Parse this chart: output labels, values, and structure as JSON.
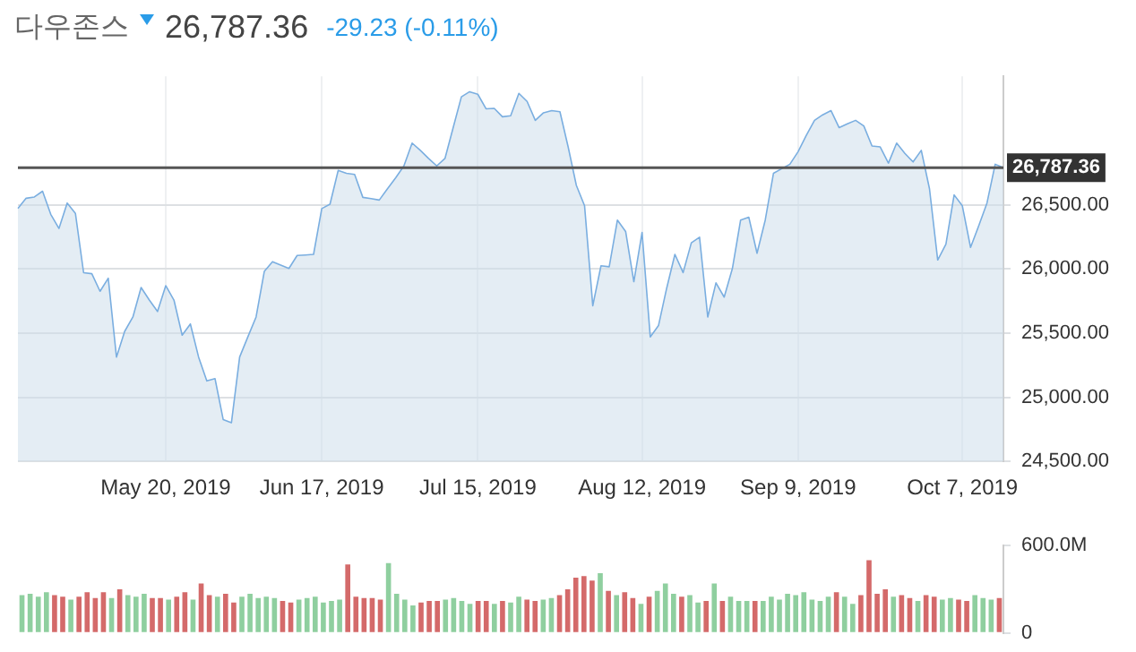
{
  "chart_data": [
    {
      "type": "area",
      "title": "다우존스",
      "subtitle": "26,787.36",
      "annotations": [
        "-29.23 (-0.11%)"
      ],
      "categories": [
        null,
        null,
        null,
        null,
        null,
        null,
        null,
        null,
        null,
        null,
        null,
        null,
        null,
        null,
        null,
        null,
        null,
        null,
        "May 20, 2019",
        null,
        null,
        null,
        null,
        null,
        null,
        null,
        null,
        null,
        null,
        null,
        null,
        null,
        null,
        null,
        null,
        null,
        null,
        "Jun 17, 2019",
        null,
        null,
        null,
        null,
        null,
        null,
        null,
        null,
        null,
        null,
        null,
        null,
        null,
        null,
        null,
        null,
        null,
        null,
        "Jul 15, 2019",
        null,
        null,
        null,
        null,
        null,
        null,
        null,
        null,
        null,
        null,
        null,
        null,
        null,
        null,
        null,
        null,
        null,
        null,
        null,
        "Aug 12, 2019",
        null,
        null,
        null,
        null,
        null,
        null,
        null,
        null,
        null,
        null,
        null,
        null,
        null,
        null,
        null,
        null,
        null,
        null,
        "Sep 9, 2019",
        null,
        null,
        null,
        null,
        null,
        null,
        null,
        null,
        null,
        null,
        null,
        null,
        null,
        null,
        null,
        null,
        null,
        null,
        null,
        "Oct 7, 2019",
        null,
        null,
        null,
        null,
        null
      ],
      "series": [
        {
          "color": "#7aaee0",
          "values": [
            26470,
            26550,
            26560,
            26605,
            26425,
            26315,
            26513,
            26433,
            25970,
            25962,
            25825,
            25927,
            25313,
            25513,
            25625,
            25855,
            25757,
            25668,
            25869,
            25757,
            25483,
            25571,
            25313,
            25127,
            25145,
            24825,
            24802,
            25313,
            25470,
            25625,
            25980,
            26056,
            26030,
            26003,
            26104,
            26108,
            26113,
            26470,
            26504,
            26767,
            26744,
            26736,
            26557,
            26547,
            26536,
            26624,
            26710,
            26802,
            26980,
            26923,
            26860,
            26802,
            26860,
            27100,
            27340,
            27380,
            27360,
            27247,
            27250,
            27185,
            27193,
            27367,
            27304,
            27157,
            27216,
            27233,
            27224,
            26950,
            26650,
            26491,
            25713,
            26024,
            26016,
            26380,
            26291,
            25900,
            26283,
            25470,
            25558,
            25850,
            26113,
            25971,
            26203,
            26247,
            25625,
            25891,
            25780,
            26003,
            26380,
            26402,
            26122,
            26380,
            26744,
            26780,
            26815,
            26913,
            27040,
            27157,
            27200,
            27233,
            27100,
            27130,
            27157,
            27113,
            26957,
            26950,
            26824,
            26980,
            26900,
            26833,
            26923,
            26624,
            26069,
            26193,
            26576,
            26491,
            26167,
            26336,
            26513,
            26815,
            26787.36
          ]
        }
      ],
      "ylim": [
        24500,
        27500
      ],
      "yticks": [
        {
          "value": 24500,
          "label": "24,500.00"
        },
        {
          "value": 25000,
          "label": "25,000.00"
        },
        {
          "value": 25500,
          "label": "25,500.00"
        },
        {
          "value": 26000,
          "label": "26,000.00"
        },
        {
          "value": 26500,
          "label": "26,500.00"
        }
      ],
      "ref_lines": [
        {
          "axis": "y",
          "value": 26787.36,
          "label": "26,787.36",
          "color": "#555555"
        }
      ],
      "grid": true,
      "marker": "none"
    },
    {
      "type": "bar",
      "categories": [
        null,
        null,
        null,
        null,
        null,
        null,
        null,
        null,
        null,
        null,
        null,
        null,
        null,
        null,
        null,
        null,
        null,
        null,
        null,
        null,
        null,
        null,
        null,
        null,
        null,
        null,
        null,
        null,
        null,
        null,
        null,
        null,
        null,
        null,
        null,
        null,
        null,
        null,
        null,
        null,
        null,
        null,
        null,
        null,
        null,
        null,
        null,
        null,
        null,
        null,
        null,
        null,
        null,
        null,
        null,
        null,
        null,
        null,
        null,
        null,
        null,
        null,
        null,
        null,
        null,
        null,
        null,
        null,
        null,
        null,
        null,
        null,
        null,
        null,
        null,
        null,
        null,
        null,
        null,
        null,
        null,
        null,
        null,
        null,
        null,
        null,
        null,
        null,
        null,
        null,
        null,
        null,
        null,
        null,
        null,
        null,
        null,
        null,
        null,
        null,
        null,
        null,
        null,
        null,
        null,
        null,
        null,
        null,
        null,
        null,
        null,
        null,
        null,
        null,
        null,
        null,
        null,
        null,
        null,
        null,
        null
      ],
      "values": [
        260,
        270,
        250,
        280,
        260,
        250,
        230,
        250,
        280,
        240,
        280,
        240,
        300,
        260,
        250,
        270,
        240,
        240,
        230,
        250,
        280,
        230,
        340,
        260,
        250,
        270,
        210,
        250,
        270,
        240,
        250,
        240,
        220,
        210,
        230,
        240,
        250,
        210,
        220,
        230,
        470,
        250,
        240,
        240,
        230,
        480,
        270,
        230,
        190,
        210,
        220,
        220,
        230,
        240,
        220,
        200,
        220,
        220,
        200,
        220,
        210,
        250,
        230,
        220,
        230,
        240,
        260,
        300,
        380,
        390,
        360,
        410,
        290,
        260,
        280,
        240,
        200,
        250,
        290,
        340,
        270,
        250,
        260,
        210,
        220,
        340,
        220,
        250,
        220,
        220,
        220,
        220,
        250,
        230,
        270,
        260,
        280,
        230,
        220,
        250,
        280,
        250,
        200,
        260,
        500,
        270,
        300,
        250,
        260,
        240,
        220,
        260,
        250,
        230,
        240,
        230,
        220,
        260,
        240,
        230,
        240
      ],
      "colors": [
        "#8fcf9f",
        "#8fcf9f",
        "#8fcf9f",
        "#8fcf9f",
        "#d46a6a",
        "#d46a6a",
        "#8fcf9f",
        "#d46a6a",
        "#d46a6a",
        "#d46a6a",
        "#d46a6a",
        "#8fcf9f",
        "#d46a6a",
        "#8fcf9f",
        "#8fcf9f",
        "#8fcf9f",
        "#d46a6a",
        "#d46a6a",
        "#8fcf9f",
        "#d46a6a",
        "#d46a6a",
        "#8fcf9f",
        "#d46a6a",
        "#d46a6a",
        "#8fcf9f",
        "#d46a6a",
        "#d46a6a",
        "#8fcf9f",
        "#8fcf9f",
        "#8fcf9f",
        "#8fcf9f",
        "#8fcf9f",
        "#d46a6a",
        "#d46a6a",
        "#8fcf9f",
        "#8fcf9f",
        "#8fcf9f",
        "#8fcf9f",
        "#8fcf9f",
        "#8fcf9f",
        "#d46a6a",
        "#d46a6a",
        "#d46a6a",
        "#d46a6a",
        "#d46a6a",
        "#8fcf9f",
        "#8fcf9f",
        "#8fcf9f",
        "#8fcf9f",
        "#d46a6a",
        "#d46a6a",
        "#d46a6a",
        "#8fcf9f",
        "#8fcf9f",
        "#8fcf9f",
        "#8fcf9f",
        "#d46a6a",
        "#d46a6a",
        "#8fcf9f",
        "#d46a6a",
        "#8fcf9f",
        "#8fcf9f",
        "#d46a6a",
        "#d46a6a",
        "#8fcf9f",
        "#8fcf9f",
        "#d46a6a",
        "#d46a6a",
        "#d46a6a",
        "#d46a6a",
        "#d46a6a",
        "#8fcf9f",
        "#d46a6a",
        "#8fcf9f",
        "#d46a6a",
        "#d46a6a",
        "#8fcf9f",
        "#d46a6a",
        "#8fcf9f",
        "#8fcf9f",
        "#8fcf9f",
        "#d46a6a",
        "#8fcf9f",
        "#8fcf9f",
        "#d46a6a",
        "#8fcf9f",
        "#d46a6a",
        "#8fcf9f",
        "#8fcf9f",
        "#8fcf9f",
        "#d46a6a",
        "#8fcf9f",
        "#8fcf9f",
        "#8fcf9f",
        "#8fcf9f",
        "#8fcf9f",
        "#8fcf9f",
        "#8fcf9f",
        "#8fcf9f",
        "#8fcf9f",
        "#d46a6a",
        "#8fcf9f",
        "#8fcf9f",
        "#d46a6a",
        "#d46a6a",
        "#d46a6a",
        "#d46a6a",
        "#8fcf9f",
        "#d46a6a",
        "#d46a6a",
        "#8fcf9f",
        "#d46a6a",
        "#d46a6a",
        "#8fcf9f",
        "#8fcf9f",
        "#d46a6a",
        "#d46a6a",
        "#8fcf9f",
        "#8fcf9f",
        "#8fcf9f",
        "#d46a6a"
      ],
      "ylim": [
        0,
        600
      ],
      "yticks": [
        0,
        {
          "value": 600,
          "label": "600.0M"
        }
      ],
      "tick_labels": "y",
      "grid": "x"
    }
  ]
}
